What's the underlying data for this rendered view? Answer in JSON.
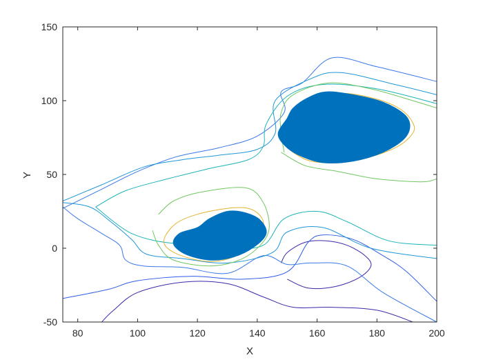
{
  "chart_data": {
    "type": "contour",
    "xlabel": "X",
    "ylabel": "Y",
    "xlim": [
      75,
      200
    ],
    "ylim": [
      -50,
      150
    ],
    "xticks": [
      80,
      100,
      120,
      140,
      160,
      180,
      200
    ],
    "yticks": [
      -50,
      0,
      50,
      100,
      150
    ],
    "grid": false,
    "fill_color": "#0072bd",
    "filled_regions": [
      {
        "name": "upper-blob",
        "points": [
          [
            150,
            88
          ],
          [
            152,
            95
          ],
          [
            157,
            102
          ],
          [
            163,
            106
          ],
          [
            172,
            104
          ],
          [
            182,
            99
          ],
          [
            189,
            91
          ],
          [
            191,
            83
          ],
          [
            189,
            74
          ],
          [
            182,
            65
          ],
          [
            172,
            59
          ],
          [
            162,
            58
          ],
          [
            154,
            63
          ],
          [
            149,
            70
          ],
          [
            147,
            78
          ]
        ]
      },
      {
        "name": "lower-blob",
        "points": [
          [
            120,
            14
          ],
          [
            124,
            20
          ],
          [
            130,
            25
          ],
          [
            136,
            24
          ],
          [
            141,
            19
          ],
          [
            143,
            10
          ],
          [
            139,
            1
          ],
          [
            132,
            -6
          ],
          [
            124,
            -8
          ],
          [
            116,
            -4
          ],
          [
            112,
            3
          ],
          [
            114,
            10
          ]
        ]
      }
    ],
    "contour_levels": [
      {
        "color": "#3e26a8",
        "lines": [
          [
            [
              88,
              -50
            ],
            [
              92,
              -42
            ],
            [
              100,
              -30
            ],
            [
              115,
              -23
            ],
            [
              130,
              -24
            ],
            [
              142,
              -33
            ],
            [
              152,
              -40
            ],
            [
              165,
              -40
            ],
            [
              180,
              -42
            ],
            [
              192,
              -50
            ]
          ],
          [
            [
              148,
              -10
            ],
            [
              150,
              -3
            ],
            [
              156,
              4
            ],
            [
              163,
              5
            ],
            [
              170,
              2
            ],
            [
              176,
              -5
            ],
            [
              178,
              -12
            ],
            [
              174,
              -20
            ],
            [
              166,
              -26
            ],
            [
              157,
              -27
            ],
            [
              150,
              -21
            ]
          ]
        ]
      },
      {
        "color": "#2e5ae6",
        "lines": [
          [
            [
              75,
              -34
            ],
            [
              90,
              -28
            ],
            [
              100,
              -22
            ],
            [
              118,
              -19
            ],
            [
              135,
              -21
            ],
            [
              150,
              -16
            ],
            [
              157,
              4
            ],
            [
              162,
              9
            ],
            [
              172,
              6
            ],
            [
              182,
              -5
            ],
            [
              190,
              -16
            ],
            [
              200,
              -36
            ]
          ]
        ]
      },
      {
        "color": "#3a78e8",
        "lines": [
          [
            [
              75,
              27
            ],
            [
              88,
              40
            ],
            [
              100,
              52
            ],
            [
              113,
              62
            ],
            [
              127,
              68
            ],
            [
              140,
              76
            ],
            [
              149,
              92
            ],
            [
              148,
              106
            ],
            [
              155,
              112
            ],
            [
              165,
              129
            ],
            [
              180,
              123
            ],
            [
              200,
              113
            ]
          ],
          [
            [
              75,
              28
            ],
            [
              80,
              20
            ],
            [
              88,
              10
            ],
            [
              94,
              2
            ],
            [
              96,
              -8
            ],
            [
              102,
              -12
            ],
            [
              115,
              -13
            ],
            [
              130,
              -17
            ],
            [
              142,
              -5
            ],
            [
              150,
              -11
            ],
            [
              158,
              -10
            ],
            [
              170,
              -12
            ],
            [
              182,
              -30
            ],
            [
              200,
              -50
            ]
          ]
        ]
      },
      {
        "color": "#1f96d8",
        "lines": [
          [
            [
              75,
              32
            ],
            [
              88,
              43
            ],
            [
              102,
              55
            ],
            [
              115,
              60
            ],
            [
              127,
              63
            ],
            [
              140,
              67
            ],
            [
              146,
              78
            ],
            [
              146,
              100
            ],
            [
              158,
              115
            ],
            [
              168,
              119
            ],
            [
              186,
              111
            ],
            [
              200,
              104
            ]
          ],
          [
            [
              75,
              31
            ],
            [
              84,
              28
            ],
            [
              91,
              18
            ],
            [
              98,
              6
            ],
            [
              103,
              -4
            ],
            [
              115,
              -7
            ],
            [
              130,
              -10
            ],
            [
              145,
              -3
            ],
            [
              150,
              11
            ],
            [
              162,
              14
            ],
            [
              178,
              0
            ],
            [
              200,
              -7
            ]
          ]
        ]
      },
      {
        "color": "#1cb3b8",
        "lines": [
          [
            [
              86,
              28
            ],
            [
              96,
              39
            ],
            [
              110,
              47
            ],
            [
              124,
              54
            ],
            [
              137,
              60
            ],
            [
              142,
              69
            ],
            [
              143,
              84
            ],
            [
              150,
              103
            ],
            [
              162,
              111
            ],
            [
              180,
              108
            ],
            [
              200,
              98
            ]
          ],
          [
            [
              86,
              28
            ],
            [
              92,
              18
            ],
            [
              98,
              10
            ],
            [
              106,
              5
            ],
            [
              118,
              2
            ],
            [
              130,
              0
            ],
            [
              142,
              2
            ],
            [
              149,
              20
            ],
            [
              160,
              25
            ],
            [
              170,
              18
            ],
            [
              184,
              5
            ],
            [
              200,
              2
            ]
          ]
        ]
      },
      {
        "color": "#6fc760",
        "lines": [
          [
            [
              149,
              65
            ],
            [
              148,
              78
            ],
            [
              148,
              92
            ],
            [
              152,
              104
            ],
            [
              164,
              112
            ],
            [
              178,
              108
            ],
            [
              192,
              100
            ],
            [
              200,
              95
            ]
          ],
          [
            [
              148,
              65
            ],
            [
              156,
              56
            ],
            [
              167,
              52
            ],
            [
              180,
              47
            ],
            [
              195,
              45
            ],
            [
              200,
              47
            ]
          ],
          [
            [
              107,
              23
            ],
            [
              112,
              32
            ],
            [
              121,
              38
            ],
            [
              136,
              41
            ],
            [
              142,
              31
            ],
            [
              144,
              14
            ],
            [
              141,
              2
            ],
            [
              134,
              -8
            ],
            [
              124,
              -12
            ],
            [
              112,
              -8
            ],
            [
              107,
              2
            ],
            [
              105,
              12
            ]
          ]
        ]
      },
      {
        "color": "#e2b42e",
        "lines": [
          [
            [
              149,
              78
            ],
            [
              152,
              91
            ],
            [
              158,
              100
            ],
            [
              168,
              105
            ],
            [
              180,
              101
            ],
            [
              188,
              94
            ],
            [
              192,
              85
            ],
            [
              192,
              78
            ],
            [
              187,
              69
            ],
            [
              178,
              62
            ],
            [
              168,
              58
            ],
            [
              158,
              59
            ],
            [
              152,
              65
            ],
            [
              149,
              71
            ]
          ],
          [
            [
              109,
              7
            ],
            [
              113,
              17
            ],
            [
              120,
              23
            ],
            [
              130,
              27
            ],
            [
              137,
              27
            ],
            [
              141,
              22
            ],
            [
              142,
              15
            ],
            [
              139,
              5
            ],
            [
              133,
              -5
            ],
            [
              125,
              -9
            ],
            [
              116,
              -6
            ],
            [
              110,
              0
            ]
          ]
        ]
      }
    ]
  }
}
